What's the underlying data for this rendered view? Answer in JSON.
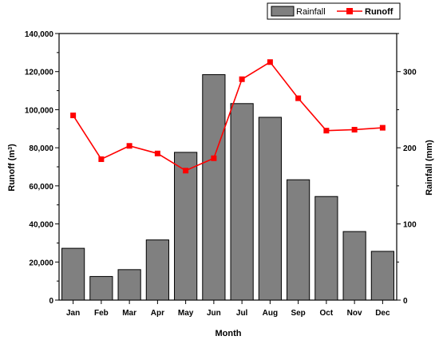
{
  "chart_data": {
    "type": "bar",
    "categories": [
      "Jan",
      "Feb",
      "Mar",
      "Apr",
      "May",
      "Jun",
      "Jul",
      "Aug",
      "Sep",
      "Oct",
      "Nov",
      "Dec"
    ],
    "series": [
      {
        "name": "Rainfall",
        "type": "bar",
        "axis": "right",
        "color": "#808080",
        "values": [
          68,
          31,
          40,
          79,
          194,
          296,
          258,
          240,
          158,
          136,
          90,
          64
        ]
      },
      {
        "name": "Runoff",
        "type": "line",
        "axis": "left",
        "color": "#ff0000",
        "values": [
          97000,
          74000,
          81000,
          77000,
          68000,
          74500,
          116000,
          125000,
          106000,
          89000,
          89500,
          90500
        ]
      }
    ],
    "xlabel": "Month",
    "ylabel_left": "Runoff (m",
    "ylabel_left_sup": "3",
    "ylabel_left_close": ")",
    "ylabel_right": "Rainfall (mm)",
    "ylim_left": [
      0,
      140000
    ],
    "ylim_right": [
      0,
      350
    ],
    "yticks_left": [
      "0",
      "20,000",
      "40,000",
      "60,000",
      "80,000",
      "100,000",
      "120,000",
      "140,000"
    ],
    "yticks_right": [
      "0",
      "100",
      "200",
      "300"
    ],
    "legend_position": "top-right",
    "grid": false
  }
}
